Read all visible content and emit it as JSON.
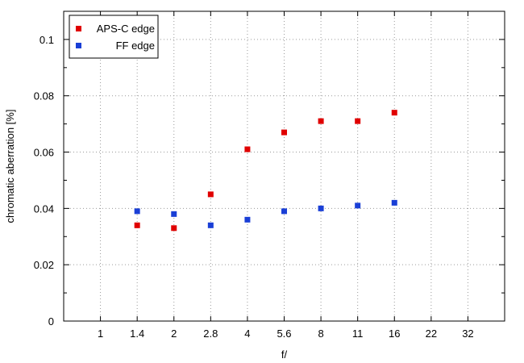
{
  "chart_data": {
    "type": "scatter",
    "xlabel": "f/",
    "ylabel": "chromatic aberration [%]",
    "x_tick_labels": [
      "1",
      "1.4",
      "2",
      "2.8",
      "4",
      "5.6",
      "8",
      "11",
      "16",
      "22",
      "32"
    ],
    "x_scale": "log2",
    "xlim": [
      0.7071,
      45.25
    ],
    "ylim": [
      0,
      0.11
    ],
    "y_ticks": [
      0,
      0.02,
      0.04,
      0.06,
      0.08,
      0.1
    ],
    "y_tick_labels": [
      "0",
      "0.02",
      "0.04",
      "0.06",
      "0.08",
      "0.1"
    ],
    "grid": true,
    "legend_position": "top-left",
    "series": [
      {
        "name": "APS-C edge",
        "color": "#e00000",
        "points": [
          {
            "x": 1.4,
            "y": 0.034
          },
          {
            "x": 2,
            "y": 0.033
          },
          {
            "x": 2.8,
            "y": 0.045
          },
          {
            "x": 4,
            "y": 0.061
          },
          {
            "x": 5.6,
            "y": 0.067
          },
          {
            "x": 8,
            "y": 0.071
          },
          {
            "x": 11,
            "y": 0.071
          },
          {
            "x": 16,
            "y": 0.074
          }
        ]
      },
      {
        "name": "FF edge",
        "color": "#1a3fd6",
        "points": [
          {
            "x": 1.4,
            "y": 0.039
          },
          {
            "x": 2,
            "y": 0.038
          },
          {
            "x": 2.8,
            "y": 0.034
          },
          {
            "x": 4,
            "y": 0.036
          },
          {
            "x": 5.6,
            "y": 0.039
          },
          {
            "x": 8,
            "y": 0.04
          },
          {
            "x": 11,
            "y": 0.041
          },
          {
            "x": 16,
            "y": 0.042
          }
        ]
      }
    ]
  }
}
